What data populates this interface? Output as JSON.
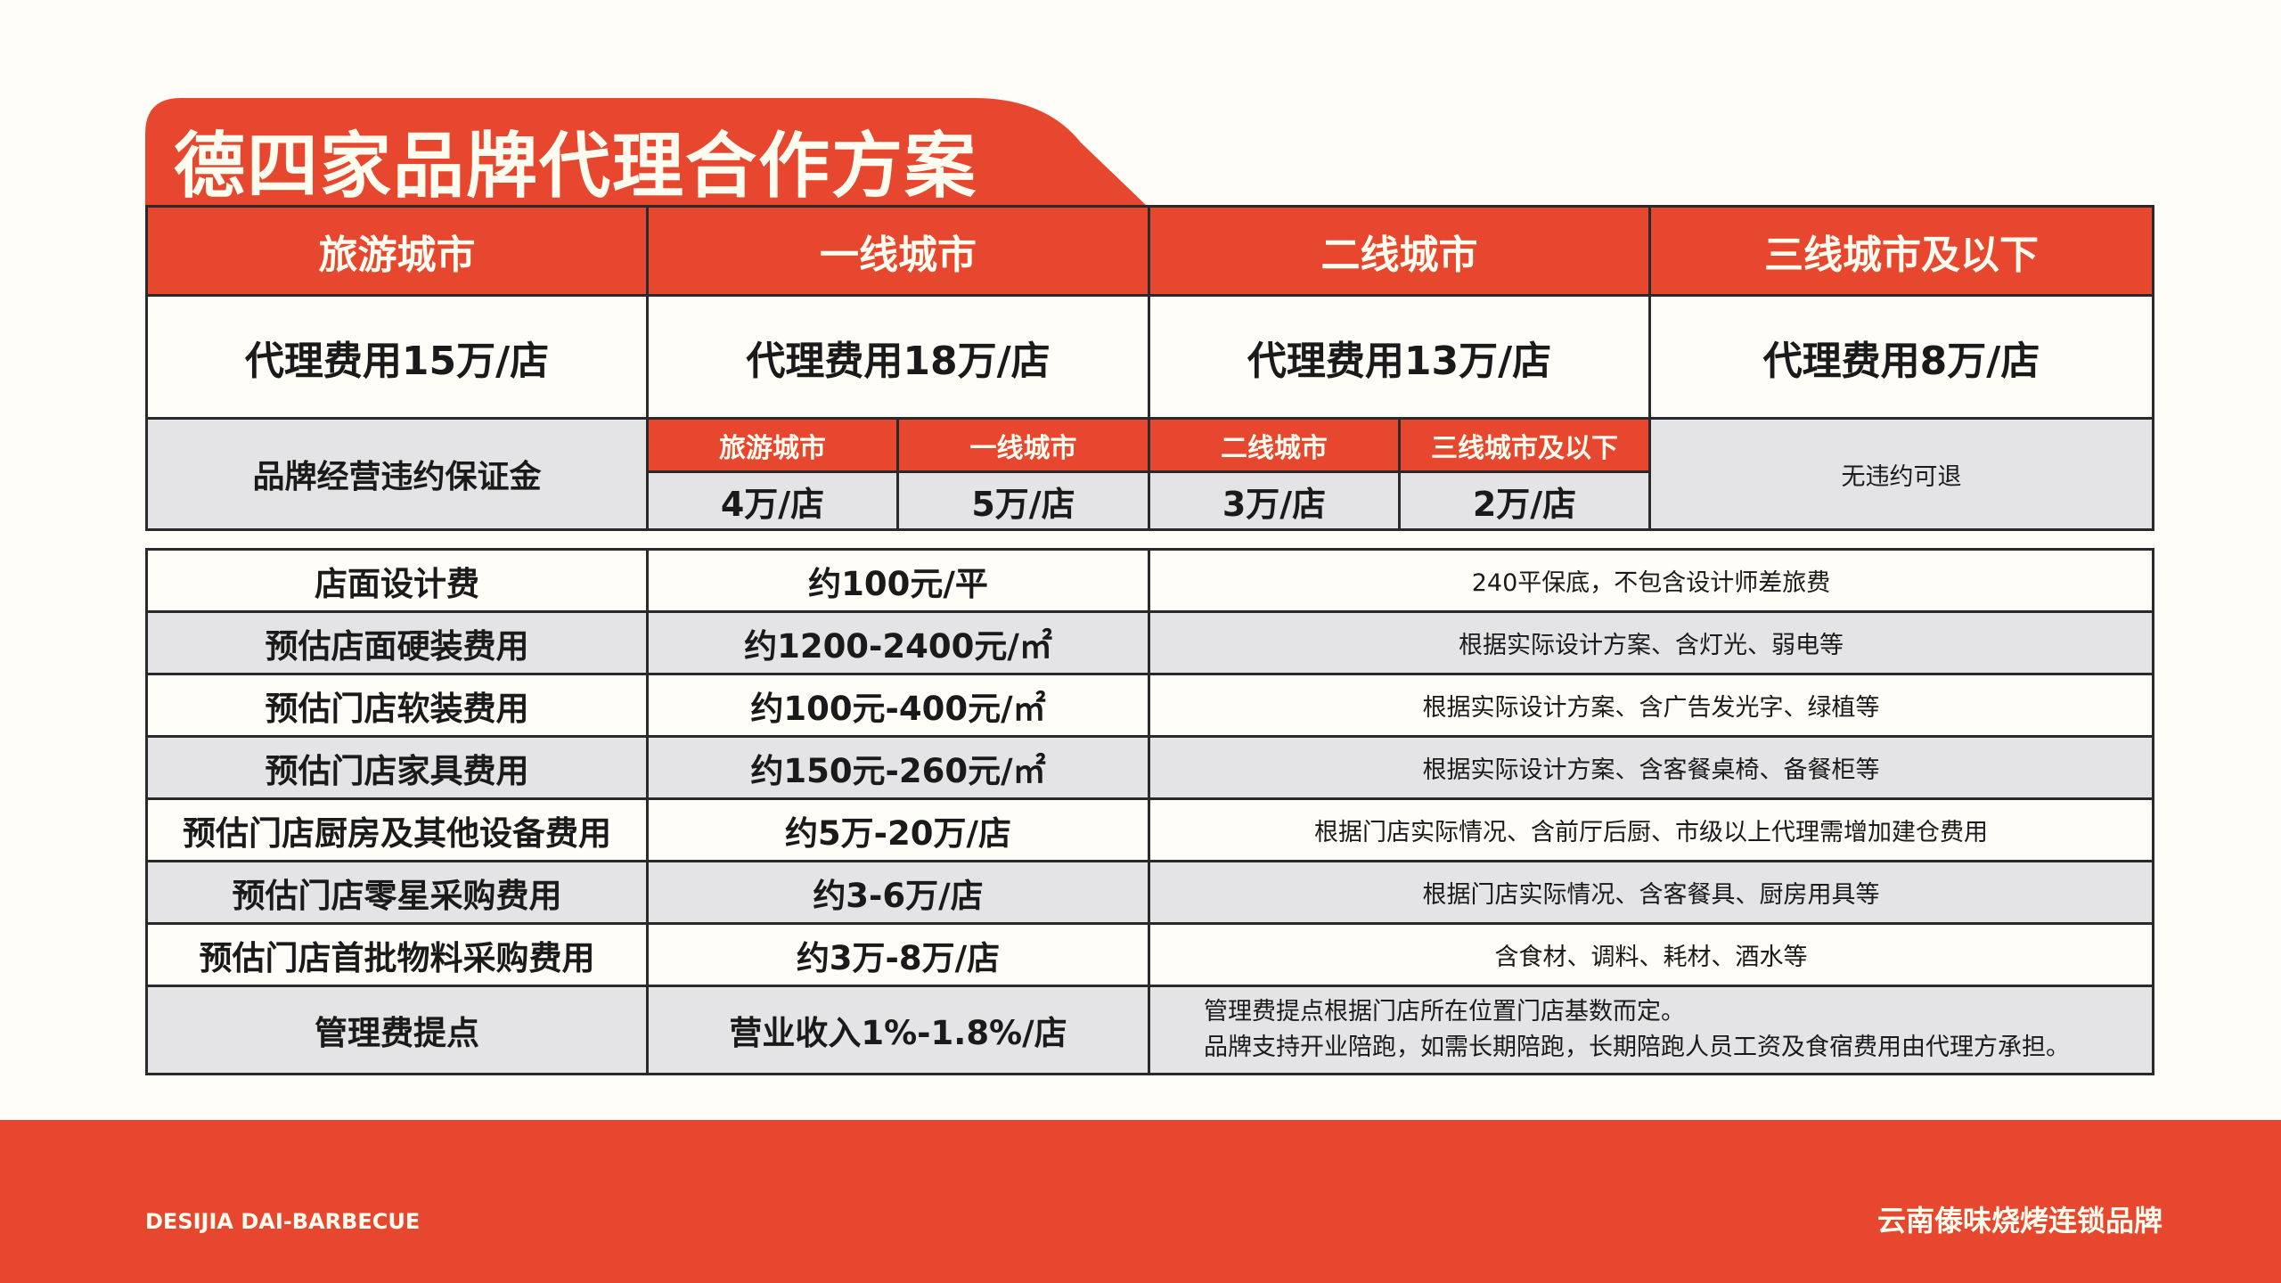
{
  "title": "德四家品牌代理合作方案",
  "colors": {
    "accent": "#e8472f",
    "row_grey": "#e4e4e6",
    "background": "#fffdf8"
  },
  "cities": [
    "旅游城市",
    "一线城市",
    "二线城市",
    "三线城市及以下"
  ],
  "fees": [
    "代理费用15万/店",
    "代理费用18万/店",
    "代理费用13万/店",
    "代理费用8万/店"
  ],
  "deposit": {
    "label": "品牌经营违约保证金",
    "sub_cities": [
      "旅游城市",
      "一线城市",
      "二线城市",
      "三线城市及以下"
    ],
    "values": [
      "4万/店",
      "5万/店",
      "3万/店",
      "2万/店"
    ],
    "note": "无违约可退"
  },
  "costs": [
    {
      "item": "店面设计费",
      "amount": "约100元/平",
      "note": "240平保底，不包含设计师差旅费"
    },
    {
      "item": "预估店面硬装费用",
      "amount": "约1200-2400元/㎡",
      "note": "根据实际设计方案、含灯光、弱电等"
    },
    {
      "item": "预估门店软装费用",
      "amount": "约100元-400元/㎡",
      "note": "根据实际设计方案、含广告发光字、绿植等"
    },
    {
      "item": "预估门店家具费用",
      "amount": "约150元-260元/㎡",
      "note": "根据实际设计方案、含客餐桌椅、备餐柜等"
    },
    {
      "item": "预估门店厨房及其他设备费用",
      "amount": "约5万-20万/店",
      "note": "根据门店实际情况、含前厅后厨、市级以上代理需增加建仓费用"
    },
    {
      "item": "预估门店零星采购费用",
      "amount": "约3-6万/店",
      "note": "根据门店实际情况、含客餐具、厨房用具等"
    },
    {
      "item": "预估门店首批物料采购费用",
      "amount": "约3万-8万/店",
      "note": "含食材、调料、耗材、酒水等"
    }
  ],
  "mgmt": {
    "item": "管理费提点",
    "amount": "营业收入1%-1.8%/店",
    "note_line1": "管理费提点根据门店所在位置门店基数而定。",
    "note_line2": "品牌支持开业陪跑，如需长期陪跑，长期陪跑人员工资及食宿费用由代理方承担。"
  },
  "footer": {
    "left": "DESIJIA DAI-BARBECUE",
    "right": "云南傣味烧烤连锁品牌"
  }
}
